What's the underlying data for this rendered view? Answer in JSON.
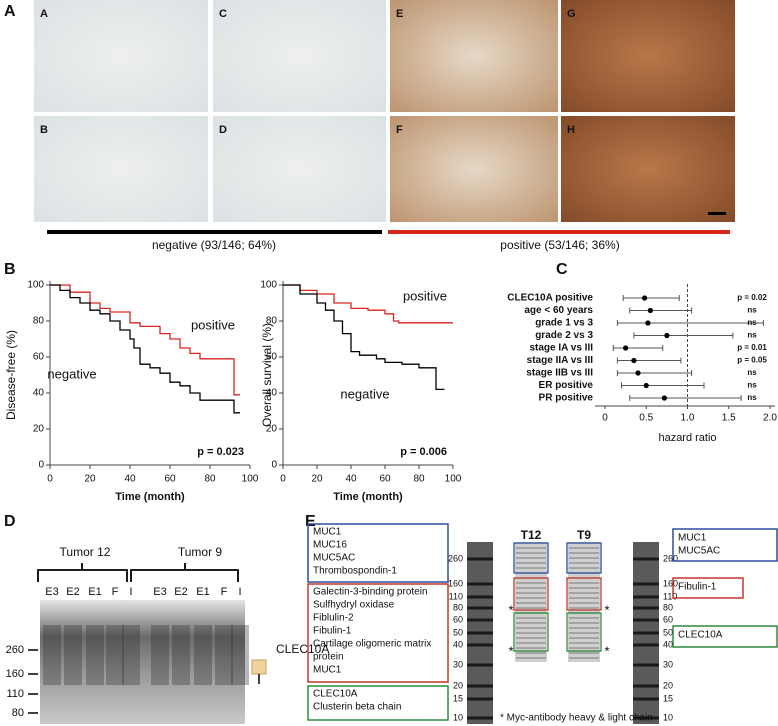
{
  "panel_labels": [
    "A",
    "B",
    "C",
    "D",
    "E"
  ],
  "panel_a": {
    "image_labels": [
      "A",
      "B",
      "C",
      "D",
      "E",
      "F",
      "G",
      "H"
    ],
    "negative_caption": "negative (93/146; 64%)",
    "positive_caption": "positive (53/146; 36%)"
  },
  "chart_data": [
    {
      "type": "step",
      "ylabel": "Disease-free (%)",
      "xlabel": "Time (month)",
      "annotation": "p = 0.023",
      "xlim": [
        0,
        100
      ],
      "xticks": [
        0,
        20,
        40,
        60,
        80,
        100
      ],
      "ylim": [
        0,
        100
      ],
      "yticks": [
        0,
        20,
        40,
        60,
        80,
        100
      ],
      "series": [
        {
          "name": "positive",
          "color": "#d7261e",
          "x": [
            0,
            10,
            20,
            25,
            30,
            40,
            45,
            55,
            60,
            65,
            70,
            75,
            90,
            92,
            95
          ],
          "values": [
            100,
            96,
            90,
            87,
            85,
            79,
            77,
            73,
            70,
            65,
            62,
            59,
            59,
            39,
            39
          ]
        },
        {
          "name": "negative",
          "color": "#000000",
          "x": [
            0,
            5,
            10,
            15,
            20,
            25,
            30,
            35,
            40,
            42,
            45,
            50,
            55,
            60,
            65,
            70,
            75,
            90,
            92,
            95
          ],
          "values": [
            100,
            97,
            93,
            90,
            86,
            84,
            80,
            75,
            70,
            65,
            56,
            54,
            51,
            46,
            44,
            40,
            36,
            36,
            29,
            29
          ]
        }
      ]
    },
    {
      "type": "step",
      "ylabel": "Overall  survival  (%)",
      "xlabel": "Time (month)",
      "annotation": "p = 0.006",
      "xlim": [
        0,
        100
      ],
      "xticks": [
        0,
        20,
        40,
        60,
        80,
        100
      ],
      "ylim": [
        0,
        100
      ],
      "yticks": [
        0,
        20,
        40,
        60,
        80,
        100
      ],
      "series": [
        {
          "name": "positive",
          "color": "#d7261e",
          "x": [
            0,
            10,
            20,
            30,
            40,
            50,
            60,
            65,
            68,
            100
          ],
          "values": [
            100,
            97,
            95,
            90,
            87,
            86,
            84,
            80,
            79,
            79
          ]
        },
        {
          "name": "negative",
          "color": "#000000",
          "x": [
            0,
            10,
            20,
            25,
            30,
            35,
            40,
            45,
            55,
            60,
            70,
            80,
            88,
            90,
            95
          ],
          "values": [
            100,
            95,
            90,
            86,
            80,
            73,
            63,
            61,
            59,
            57,
            56,
            54,
            54,
            42,
            42
          ]
        }
      ]
    },
    {
      "type": "forest",
      "xlabel": "hazard ratio",
      "categories": [
        "CLEC10A positive",
        "age < 60 years",
        "grade 1 vs 3",
        "grade 2 vs 3",
        "stage IA vs III",
        "stage IIA vs III",
        "stage IIB vs III",
        "ER positive",
        "PR positive"
      ],
      "values": [
        0.48,
        0.55,
        0.52,
        0.75,
        0.25,
        0.35,
        0.4,
        0.5,
        0.72
      ],
      "lower": [
        0.22,
        0.3,
        0.15,
        0.35,
        0.1,
        0.15,
        0.15,
        0.2,
        0.3
      ],
      "upper": [
        0.9,
        1.05,
        1.92,
        1.55,
        0.7,
        0.92,
        1.05,
        1.2,
        1.65
      ],
      "p_labels": [
        "p = 0.02",
        "ns",
        "ns",
        "ns",
        "p = 0.01",
        "p = 0.05",
        "ns",
        "ns",
        "ns"
      ],
      "reference": 1,
      "xlim": [
        0,
        2.0
      ],
      "xticks": [
        0,
        0.5,
        {
          "value": 1,
          "label": "1.0"
        },
        1.5,
        {
          "value": 2,
          "label": "2.0"
        }
      ]
    }
  ],
  "panel_d": {
    "groups": [
      "Tumor 12",
      "Tumor 9"
    ],
    "lanes": [
      "E3",
      "E2",
      "E1",
      "F",
      "I",
      "E3",
      "E2",
      "E1",
      "F",
      "I"
    ],
    "markers": [
      "260",
      "160",
      "110",
      "80"
    ],
    "band_label": "CLEC10A"
  },
  "panel_e": {
    "left_boxes": [
      [
        "MUC1",
        "MUC16",
        "MUC5AC",
        "Thrombospondin-1"
      ],
      [
        "Galectin-3-binding protein",
        "Sulfhydryl oxidase",
        "Fiblulin-2",
        "Fibulin-1",
        "Cartilage oligomeric matrix",
        "protein",
        "MUC1"
      ],
      [
        "CLEC10A",
        "Clusterin beta chain"
      ]
    ],
    "lanes": [
      "T12",
      "T9"
    ],
    "markers": [
      "260",
      "160",
      "110",
      "80",
      "60",
      "50",
      "40",
      "30",
      "20",
      "15",
      "10"
    ],
    "stars": [
      "*",
      "*",
      "*",
      "*"
    ],
    "right_boxes": [
      [
        "MUC1",
        "MUC5AC"
      ],
      [
        "Fibulin-1"
      ],
      [
        "CLEC10A"
      ]
    ],
    "footnote": "* Myc-antibody heavy & light chain"
  }
}
